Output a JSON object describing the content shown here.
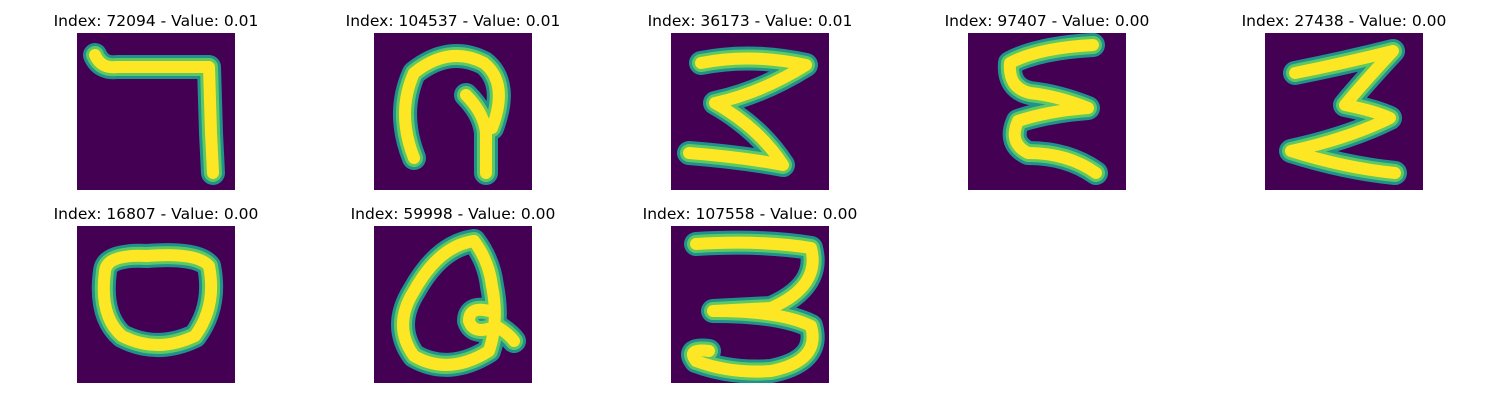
{
  "colors": {
    "background": "#440154",
    "stroke_edge": "#21918c",
    "stroke_mid": "#5ec962",
    "stroke_core": "#fde725"
  },
  "panels": [
    {
      "title": "Index: 72094 - Value: 0.01",
      "glyph": "seven-like-stroke"
    },
    {
      "title": "Index: 104537 - Value: 0.01",
      "glyph": "loop-with-stem"
    },
    {
      "title": "Index: 36173 - Value: 0.01",
      "glyph": "zigzag-stroke"
    },
    {
      "title": "Index: 97407 - Value: 0.00",
      "glyph": "epsilon-stroke"
    },
    {
      "title": "Index: 27438 - Value: 0.00",
      "glyph": "sigma-stroke"
    },
    {
      "title": "Index: 16807 - Value: 0.00",
      "glyph": "rounded-loop"
    },
    {
      "title": "Index: 59998 - Value: 0.00",
      "glyph": "loop-with-inner-curl"
    },
    {
      "title": "Index: 107558 - Value: 0.00",
      "glyph": "three-like-stroke"
    }
  ]
}
